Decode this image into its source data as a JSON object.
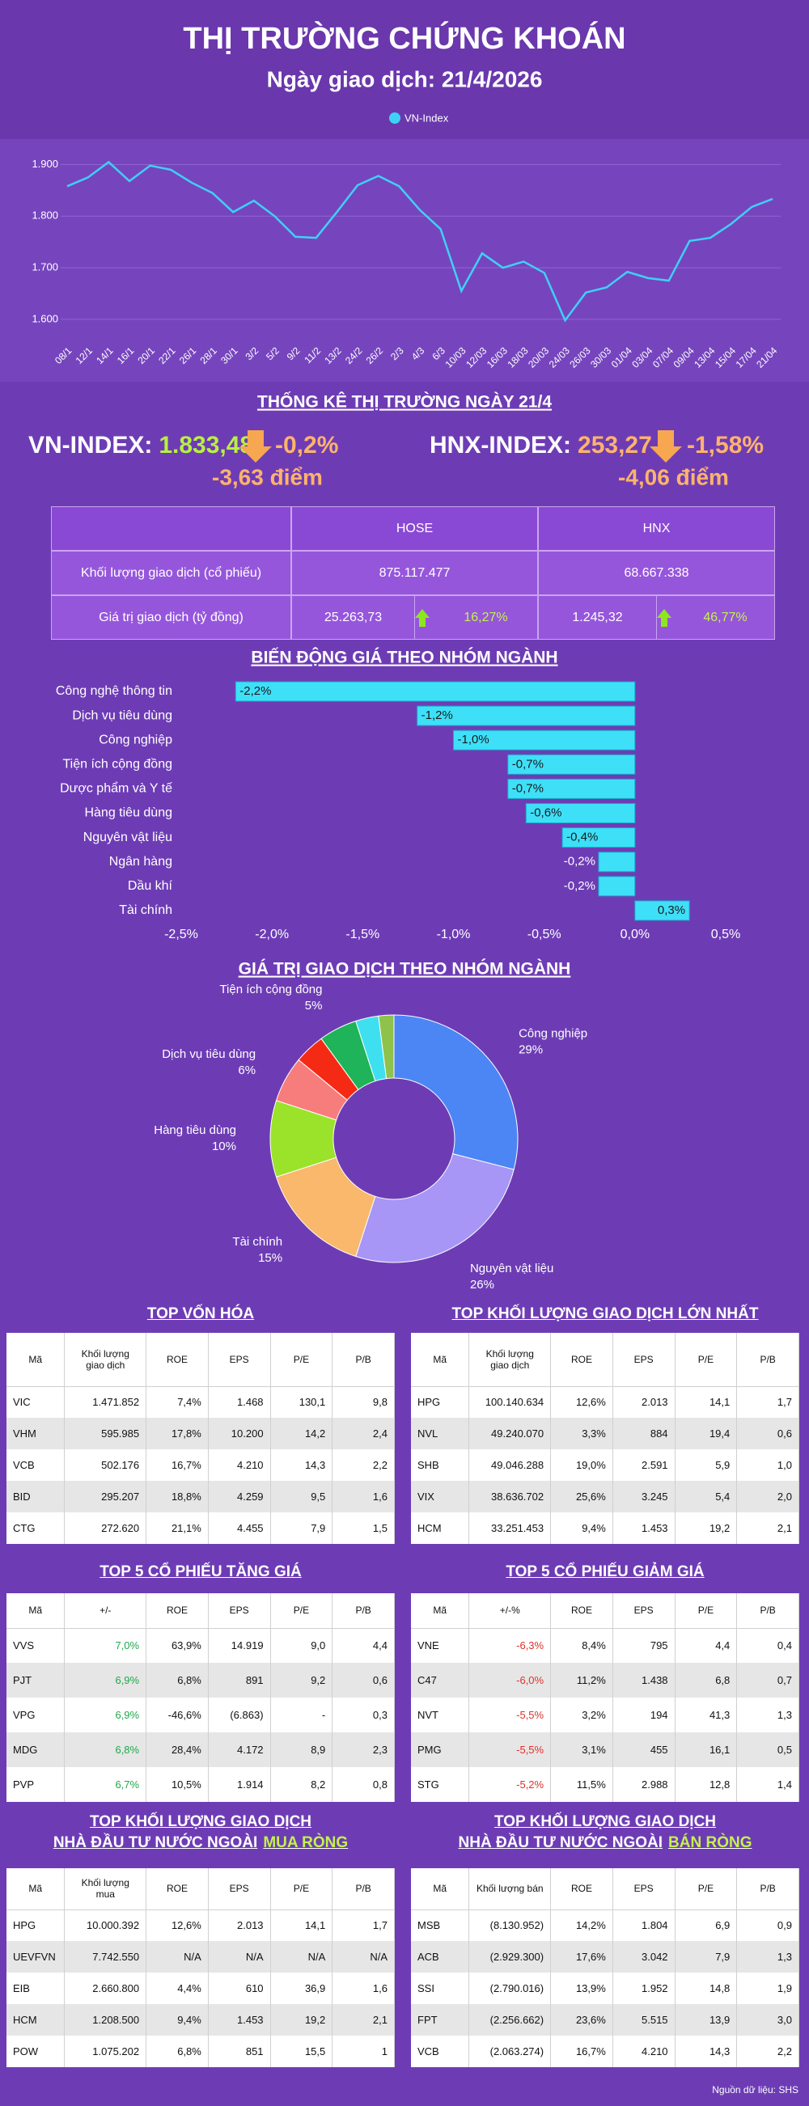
{
  "header": {
    "title": "THỊ TRƯỜNG CHỨNG KHOÁN",
    "subtitle": "Ngày giao dịch: 21/4/2026"
  },
  "chart_data": [
    {
      "type": "line",
      "categories": [
        "08/1",
        "12/1",
        "14/1",
        "16/1",
        "20/1",
        "22/1",
        "26/1",
        "28/1",
        "30/1",
        "3/2",
        "5/2",
        "9/2",
        "11/2",
        "13/2",
        "24/2",
        "26/2",
        "2/3",
        "4/3",
        "6/3",
        "10/03",
        "12/03",
        "16/03",
        "18/03",
        "20/03",
        "24/03",
        "26/03",
        "30/03",
        "01/04",
        "03/04",
        "07/04",
        "09/04",
        "13/04",
        "15/04",
        "17/04",
        "21/04"
      ],
      "series": [
        {
          "name": "VN-Index",
          "color": "#3fd0f5",
          "values": [
            1858,
            1875,
            1905,
            1868,
            1898,
            1890,
            1865,
            1845,
            1808,
            1830,
            1800,
            1760,
            1758,
            1808,
            1860,
            1878,
            1858,
            1812,
            1775,
            1655,
            1728,
            1700,
            1712,
            1690,
            1598,
            1652,
            1662,
            1692,
            1680,
            1675,
            1752,
            1758,
            1785,
            1818,
            1833.48
          ]
        }
      ],
      "ylim": [
        1570,
        1940
      ],
      "yticks": [
        {
          "value": 1600,
          "label": "1.600"
        },
        {
          "value": 1700,
          "label": "1.700"
        },
        {
          "value": 1800,
          "label": "1.800"
        },
        {
          "value": 1900,
          "label": "1.900"
        }
      ],
      "grid": true
    },
    {
      "type": "hbar",
      "title": "BIẾN ĐỘNG GIÁ THEO NHÓM NGÀNH",
      "categories": [
        "Công nghệ thông tin",
        "Dịch vụ tiêu dùng",
        "Công nghiệp",
        "Tiện ích cộng đồng",
        "Dược phẩm và Y tế",
        "Hàng tiêu dùng",
        "Nguyên vật liệu",
        "Ngân hàng",
        "Dầu khí",
        "Tài chính"
      ],
      "values": [
        -2.2,
        -1.2,
        -1.0,
        -0.7,
        -0.7,
        -0.6,
        -0.4,
        -0.2,
        -0.2,
        0.3
      ],
      "value_labels": [
        "-2,2%",
        "-1,2%",
        "-1,0%",
        "-0,7%",
        "-0,7%",
        "-0,6%",
        "-0,4%",
        "-0,2%",
        "-0,2%",
        "0,3%"
      ],
      "color": "#3ee0f8",
      "xlim": [
        -2.5,
        0.5
      ],
      "xticks": [
        {
          "value": -2.5,
          "label": "-2,5%"
        },
        {
          "value": -2,
          "label": "-2,0%"
        },
        {
          "value": -1.5,
          "label": "-1,5%"
        },
        {
          "value": -1,
          "label": "-1,0%"
        },
        {
          "value": -0.5,
          "label": "-0,5%"
        },
        {
          "value": 0,
          "label": "0,0%"
        },
        {
          "value": 0.5,
          "label": "0,5%"
        }
      ]
    },
    {
      "type": "pie",
      "title": "GIÁ TRỊ GIAO DỊCH THEO NHÓM NGÀNH",
      "categories": [
        "Công nghiệp",
        "Nguyên vật liệu",
        "Tài chính",
        "Hàng tiêu dùng",
        "Dịch vụ tiêu dùng",
        null,
        "Tiện ích cộng đồng",
        null,
        null
      ],
      "values": [
        29,
        26,
        15,
        10,
        6,
        4,
        5,
        3,
        2
      ],
      "value_labels": [
        "29%",
        "26%",
        "15%",
        "10%",
        "6%",
        null,
        "5%",
        null,
        null
      ],
      "colors": [
        "#4c86f5",
        "#a796f5",
        "#f9b86b",
        "#9be22b",
        "#f77c7c",
        "#f52a14",
        "#1fb35a",
        "#3ee0f0",
        "#8fc24a"
      ],
      "donut": true
    }
  ],
  "market": {
    "title": "THỐNG KÊ THỊ TRƯỜNG NGÀY 21/4",
    "indices": [
      {
        "name": "VN-INDEX:",
        "value": "1.833,48",
        "change": "-0,2%",
        "points": "-3,63 điểm"
      },
      {
        "name": "HNX-INDEX:",
        "value": "253,27",
        "change": "-1,58%",
        "points": "-4,06 điểm"
      }
    ],
    "table": {
      "header": [
        "HOSE",
        "HNX"
      ],
      "rows": [
        {
          "label": "Khối lượng giao dịch (cổ phiếu)",
          "cells": [
            {
              "value": "875.117.477"
            },
            {
              "value": "68.667.338"
            }
          ]
        },
        {
          "label": "Giá trị giao dịch (tỷ đồng)",
          "cells": [
            {
              "value": "25.263,73",
              "change": "16,27%"
            },
            {
              "value": "1.245,32",
              "change": "46,77%"
            }
          ]
        }
      ]
    }
  },
  "tables": [
    {
      "title": [
        "TOP VỐN HÓA"
      ],
      "header": [
        "Mã",
        "Khối lượng giao dịch",
        "ROE",
        "EPS",
        "P/E",
        "P/B"
      ],
      "rows": [
        [
          "VIC",
          "1.471.852",
          "7,4%",
          "1.468",
          "130,1",
          "9,8"
        ],
        [
          "VHM",
          "595.985",
          "17,8%",
          "10.200",
          "14,2",
          "2,4"
        ],
        [
          "VCB",
          "502.176",
          "16,7%",
          "4.210",
          "14,3",
          "2,2"
        ],
        [
          "BID",
          "295.207",
          "18,8%",
          "4.259",
          "9,5",
          "1,6"
        ],
        [
          "CTG",
          "272.620",
          "21,1%",
          "4.455",
          "7,9",
          "1,5"
        ]
      ]
    },
    {
      "title": [
        "TOP KHỐI LƯỢNG GIAO DỊCH LỚN NHẤT"
      ],
      "header": [
        "Mã",
        "Khối lượng giao dịch",
        "ROE",
        "EPS",
        "P/E",
        "P/B"
      ],
      "rows": [
        [
          "HPG",
          "100.140.634",
          "12,6%",
          "2.013",
          "14,1",
          "1,7"
        ],
        [
          "NVL",
          "49.240.070",
          "3,3%",
          "884",
          "19,4",
          "0,6"
        ],
        [
          "SHB",
          "49.046.288",
          "19,0%",
          "2.591",
          "5,9",
          "1,0"
        ],
        [
          "VIX",
          "38.636.702",
          "25,6%",
          "3.245",
          "5,4",
          "2,0"
        ],
        [
          "HCM",
          "33.251.453",
          "9,4%",
          "1.453",
          "19,2",
          "2,1"
        ]
      ]
    },
    {
      "title": [
        "TOP 5 CỔ PHIẾU TĂNG GIÁ"
      ],
      "value_color": "#1fa84a",
      "header": [
        "Mã",
        "+/-",
        "ROE",
        "EPS",
        "P/E",
        "P/B"
      ],
      "rows": [
        [
          "VVS",
          "7,0%",
          "63,9%",
          "14.919",
          "9,0",
          "4,4"
        ],
        [
          "PJT",
          "6,9%",
          "6,8%",
          "891",
          "9,2",
          "0,6"
        ],
        [
          "VPG",
          "6,9%",
          "-46,6%",
          "(6.863)",
          "-",
          "0,3"
        ],
        [
          "MDG",
          "6,8%",
          "28,4%",
          "4.172",
          "8,9",
          "2,3"
        ],
        [
          "PVP",
          "6,7%",
          "10,5%",
          "1.914",
          "8,2",
          "0,8"
        ]
      ]
    },
    {
      "title": [
        "TOP 5 CỔ PHIẾU GIẢM GIÁ"
      ],
      "value_color": "#e0302a",
      "header": [
        "Mã",
        "+/-%",
        "ROE",
        "EPS",
        "P/E",
        "P/B"
      ],
      "rows": [
        [
          "VNE",
          "-6,3%",
          "8,4%",
          "795",
          "4,4",
          "0,4"
        ],
        [
          "C47",
          "-6,0%",
          "11,2%",
          "1.438",
          "6,8",
          "0,7"
        ],
        [
          "NVT",
          "-5,5%",
          "3,2%",
          "194",
          "41,3",
          "1,3"
        ],
        [
          "PMG",
          "-5,5%",
          "3,1%",
          "455",
          "16,1",
          "0,5"
        ],
        [
          "STG",
          "-5,2%",
          "11,5%",
          "2.988",
          "12,8",
          "1,4"
        ]
      ]
    },
    {
      "title": [
        "TOP KHỐI LƯỢNG GIAO DỊCH",
        "NHÀ ĐẦU TƯ NƯỚC NGOÀI",
        "MUA RÒNG"
      ],
      "highlight_color": "#c4f24a",
      "header": [
        "Mã",
        "Khối lượng mua",
        "ROE",
        "EPS",
        "P/E",
        "P/B"
      ],
      "rows": [
        [
          "HPG",
          "10.000.392",
          "12,6%",
          "2.013",
          "14,1",
          "1,7"
        ],
        [
          "UEVFVN",
          "7.742.550",
          "N/A",
          "N/A",
          "N/A",
          "N/A"
        ],
        [
          "EIB",
          "2.660.800",
          "4,4%",
          "610",
          "36,9",
          "1,6"
        ],
        [
          "HCM",
          "1.208.500",
          "9,4%",
          "1.453",
          "19,2",
          "2,1"
        ],
        [
          "POW",
          "1.075.202",
          "6,8%",
          "851",
          "15,5",
          "1"
        ]
      ]
    },
    {
      "title": [
        "TOP KHỐI LƯỢNG GIAO DỊCH",
        "NHÀ ĐẦU TƯ NƯỚC NGOÀI",
        "BÁN RÒNG"
      ],
      "highlight_color": "#c4f24a",
      "header": [
        "Mã",
        "Khối lượng bán",
        "ROE",
        "EPS",
        "P/E",
        "P/B"
      ],
      "rows": [
        [
          "MSB",
          "(8.130.952)",
          "14,2%",
          "1.804",
          "6,9",
          "0,9"
        ],
        [
          "ACB",
          "(2.929.300)",
          "17,6%",
          "3.042",
          "7,9",
          "1,3"
        ],
        [
          "SSI",
          "(2.790.016)",
          "13,9%",
          "1.952",
          "14,8",
          "1,9"
        ],
        [
          "FPT",
          "(2.256.662)",
          "23,6%",
          "5.515",
          "13,9",
          "3,0"
        ],
        [
          "VCB",
          "(2.063.274)",
          "16,7%",
          "4.210",
          "14,3",
          "2,2"
        ]
      ]
    }
  ],
  "source": "Nguồn dữ liệu: SHS"
}
